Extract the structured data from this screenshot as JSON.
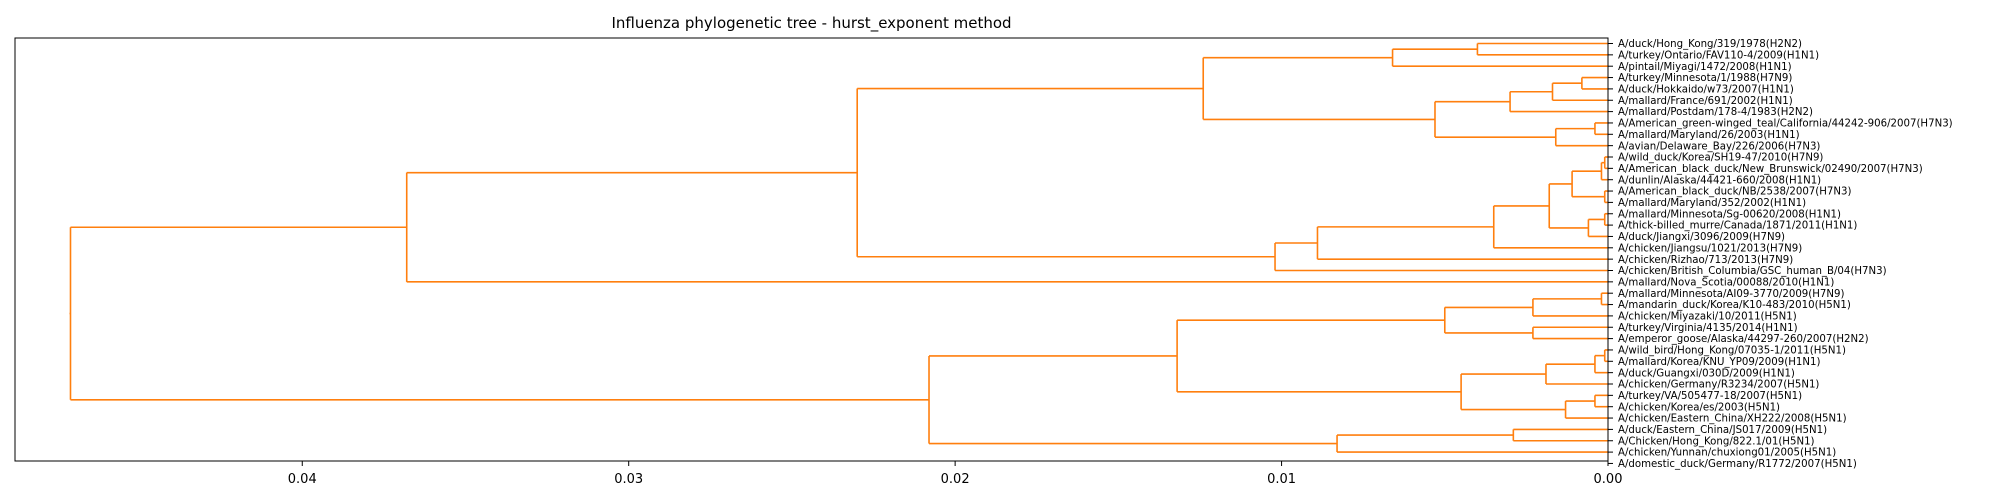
{
  "chart_data": {
    "type": "dendrogram",
    "title": "Influenza phylogenetic tree - hurst_exponent method",
    "xlabel": "",
    "ylabel": "",
    "orientation": "left",
    "x_axis_reversed": true,
    "xlim": [
      0.0,
      0.0488
    ],
    "xticks": [
      0.04,
      0.03,
      0.02,
      0.01,
      0.0
    ],
    "xtick_labels": [
      "0.04",
      "0.03",
      "0.02",
      "0.01",
      "0.00"
    ],
    "grid": false,
    "link_color": "#ff7f0e",
    "leaves": [
      "A/duck/Hong_Kong/319/1978(H2N2)",
      "A/turkey/Ontario/FAV110-4/2009(H1N1)",
      "A/pintail/Miyagi/1472/2008(H1N1)",
      "A/turkey/Minnesota/1/1988(H7N9)",
      "A/duck/Hokkaido/w73/2007(H1N1)",
      "A/mallard/France/691/2002(H1N1)",
      "A/mallard/Postdam/178-4/1983(H2N2)",
      "A/American_green-winged_teal/California/44242-906/2007(H7N3)",
      "A/mallard/Maryland/26/2003(H1N1)",
      "A/avian/Delaware_Bay/226/2006(H7N3)",
      "A/wild_duck/Korea/SH19-47/2010(H7N9)",
      "A/American_black_duck/New_Brunswick/02490/2007(H7N3)",
      "A/dunlin/Alaska/44421-660/2008(H1N1)",
      "A/American_black_duck/NB/2538/2007(H7N3)",
      "A/mallard/Maryland/352/2002(H1N1)",
      "A/mallard/Minnesota/Sg-00620/2008(H1N1)",
      "A/thick-billed_murre/Canada/1871/2011(H1N1)",
      "A/duck/Jiangxi/3096/2009(H7N9)",
      "A/chicken/Jiangsu/1021/2013(H7N9)",
      "A/chicken/Rizhao/713/2013(H7N9)",
      "A/chicken/British_Columbia/GSC_human_B/04(H7N3)",
      "A/mallard/Nova_Scotia/00088/2010(H1N1)",
      "A/mallard/Minnesota/AI09-3770/2009(H7N9)",
      "A/mandarin_duck/Korea/K10-483/2010(H5N1)",
      "A/chicken/Miyazaki/10/2011(H5N1)",
      "A/turkey/Virginia/4135/2014(H1N1)",
      "A/emperor_goose/Alaska/44297-260/2007(H2N2)",
      "A/wild_bird/Hong_Kong/07035-1/2011(H5N1)",
      "A/mallard/Korea/KNU_YP09/2009(H1N1)",
      "A/duck/Guangxi/030D/2009(H1N1)",
      "A/chicken/Germany/R3234/2007(H5N1)",
      "A/turkey/VA/505477-18/2007(H5N1)",
      "A/chicken/Korea/es/2003(H5N1)",
      "A/chicken/Eastern_China/XH222/2008(H5N1)",
      "A/duck/Eastern_China/JS017/2009(H5N1)",
      "A/Chicken/Hong_Kong/822.1/01(H5N1)",
      "A/chicken/Yunnan/chuxiong01/2005(H5N1)",
      "A/domestic_duck/Germany/R1772/2007(H5N1)"
    ],
    "tree": {
      "h": 0.0471,
      "c": [
        {
          "h": 0.0368,
          "c": [
            {
              "h": 0.023,
              "c": [
                {
                  "h": 0.0124,
                  "c": [
                    {
                      "h": 0.0066,
                      "c": [
                        {
                          "h": 0.004,
                          "c": [
                            {
                              "l": 0
                            },
                            {
                              "l": 1
                            }
                          ]
                        },
                        {
                          "l": 2
                        }
                      ]
                    },
                    {
                      "h": 0.0053,
                      "c": [
                        {
                          "h": 0.003,
                          "c": [
                            {
                              "h": 0.0017,
                              "c": [
                                {
                                  "h": 0.0008,
                                  "c": [
                                    {
                                      "l": 3
                                    },
                                    {
                                      "l": 4
                                    }
                                  ]
                                },
                                {
                                  "l": 5
                                }
                              ]
                            },
                            {
                              "l": 6
                            }
                          ]
                        },
                        {
                          "h": 0.0016,
                          "c": [
                            {
                              "h": 0.0004,
                              "c": [
                                {
                                  "l": 7
                                },
                                {
                                  "l": 8
                                }
                              ]
                            },
                            {
                              "l": 9
                            }
                          ]
                        }
                      ]
                    }
                  ]
                },
                {
                  "h": 0.0102,
                  "c": [
                    {
                      "h": 0.0089,
                      "c": [
                        {
                          "h": 0.0035,
                          "c": [
                            {
                              "h": 0.0018,
                              "c": [
                                {
                                  "h": 0.0011,
                                  "c": [
                                    {
                                      "h": 0.0002,
                                      "c": [
                                        {
                                          "h": 0.0001,
                                          "c": [
                                            {
                                              "l": 10
                                            },
                                            {
                                              "l": 11
                                            }
                                          ]
                                        },
                                        {
                                          "l": 12
                                        }
                                      ]
                                    },
                                    {
                                      "h": 0.0001,
                                      "c": [
                                        {
                                          "l": 13
                                        },
                                        {
                                          "l": 14
                                        }
                                      ]
                                    }
                                  ]
                                },
                                {
                                  "h": 0.0006,
                                  "c": [
                                    {
                                      "h": 0.0001,
                                      "c": [
                                        {
                                          "l": 15
                                        },
                                        {
                                          "l": 16
                                        }
                                      ]
                                    },
                                    {
                                      "l": 17
                                    }
                                  ]
                                }
                              ]
                            },
                            {
                              "l": 18
                            }
                          ]
                        },
                        {
                          "l": 19
                        }
                      ]
                    },
                    {
                      "l": 20
                    }
                  ]
                }
              ]
            },
            {
              "l": 21
            }
          ]
        },
        {
          "h": 0.0208,
          "c": [
            {
              "h": 0.0132,
              "c": [
                {
                  "h": 0.005,
                  "c": [
                    {
                      "h": 0.0023,
                      "c": [
                        {
                          "h": 0.0002,
                          "c": [
                            {
                              "l": 22
                            },
                            {
                              "l": 23
                            }
                          ]
                        },
                        {
                          "l": 24
                        }
                      ]
                    },
                    {
                      "h": 0.0023,
                      "c": [
                        {
                          "l": 25
                        },
                        {
                          "l": 26
                        }
                      ]
                    }
                  ]
                },
                {
                  "h": 0.0045,
                  "c": [
                    {
                      "h": 0.0019,
                      "c": [
                        {
                          "h": 0.0004,
                          "c": [
                            {
                              "h": 0.0001,
                              "c": [
                                {
                                  "l": 27
                                },
                                {
                                  "l": 28
                                }
                              ]
                            },
                            {
                              "l": 29
                            }
                          ]
                        },
                        {
                          "l": 30
                        }
                      ]
                    },
                    {
                      "h": 0.0013,
                      "c": [
                        {
                          "h": 0.0004,
                          "c": [
                            {
                              "l": 31
                            },
                            {
                              "l": 32
                            }
                          ]
                        },
                        {
                          "l": 33
                        }
                      ]
                    }
                  ]
                }
              ]
            },
            {
              "h": 0.0083,
              "c": [
                {
                  "h": 0.0029,
                  "c": [
                    {
                      "l": 34
                    },
                    {
                      "l": 35
                    }
                  ]
                },
                {
                  "l": 36
                }
              ]
            }
          ]
        }
      ]
    }
  }
}
